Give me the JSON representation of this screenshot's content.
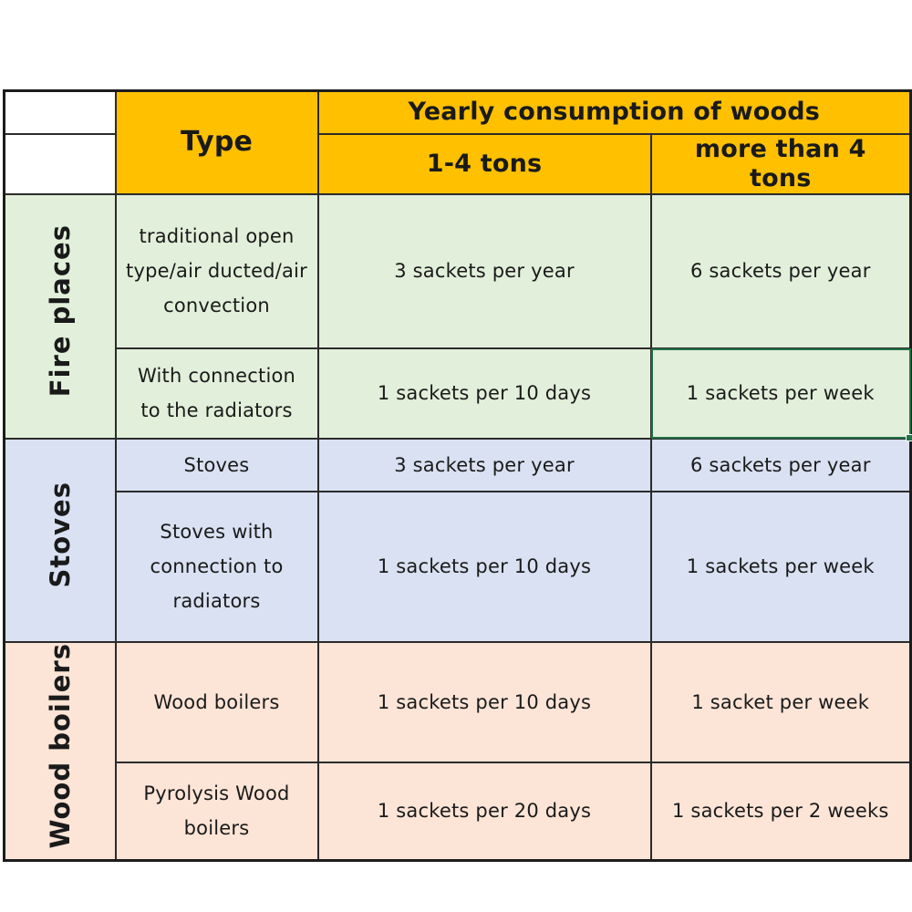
{
  "header": {
    "type_label": "Type",
    "consumption_label": "Yearly consumption of woods",
    "col_1_4": "1-4 tons",
    "col_more_4": "more than 4  tons"
  },
  "groups": [
    {
      "category": "Fire places",
      "rows": [
        {
          "type": "traditional open type/air ducted/air convection",
          "c1": "3 sackets per year",
          "c2": "6 sackets per year"
        },
        {
          "type": "With connection to the radiators",
          "c1": "1 sackets per 10 days",
          "c2": "1 sackets per week"
        }
      ]
    },
    {
      "category": "Stoves",
      "rows": [
        {
          "type": "Stoves",
          "c1": "3 sackets per year",
          "c2": "6 sackets per year"
        },
        {
          "type": "Stoves with connection to radiators",
          "c1": "1 sackets per 10 days",
          "c2": "1 sackets per week"
        }
      ]
    },
    {
      "category": "Wood boilers",
      "rows": [
        {
          "type": "Wood boilers",
          "c1": "1 sackets per 10 days",
          "c2": "1 sacket per week"
        },
        {
          "type": "Pyrolysis Wood boilers",
          "c1": "1 sackets per 20 days",
          "c2": "1 sackets per 2 weeks"
        }
      ]
    }
  ],
  "colors": {
    "header": "#ffc000",
    "fire_places": "#e2efda",
    "stoves": "#d9e1f2",
    "wood_boilers": "#fce4d6",
    "selection": "#217346"
  }
}
